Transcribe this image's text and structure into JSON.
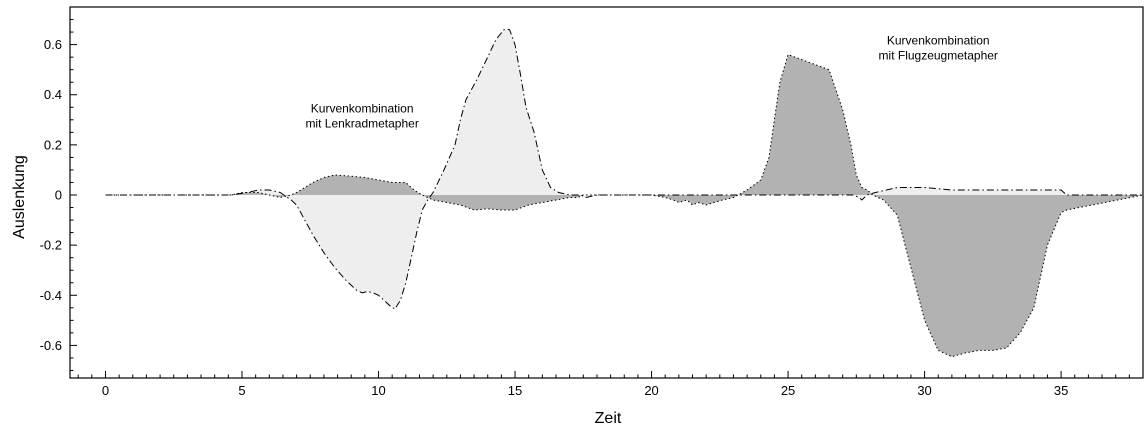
{
  "chart_data": {
    "type": "area",
    "xlabel": "Zeit",
    "ylabel": "Auslenkung",
    "xlim": [
      -1.3,
      38
    ],
    "ylim": [
      -0.73,
      0.75
    ],
    "x_ticks": [
      0,
      5,
      10,
      15,
      20,
      25,
      30,
      35
    ],
    "x_tick_labels": [
      "0",
      "5",
      "10",
      "15",
      "20",
      "25",
      "30",
      "35"
    ],
    "x_minor_step": 0.5,
    "y_ticks": [
      0.6,
      0.4,
      0.2,
      0,
      -0.2,
      -0.4,
      -0.6
    ],
    "y_tick_labels": [
      "0.6",
      "0.4",
      "0.2",
      "0",
      "-0.2",
      "-0.4",
      "-0.6"
    ],
    "y_minor_step": 0.05,
    "grid": false,
    "legend": false,
    "annotations": [
      {
        "lines": [
          "Kurvenkombination",
          "mit Lenkradmetapher"
        ],
        "x": 9.4,
        "y": 0.33
      },
      {
        "lines": [
          "Kurvenkombination",
          "mit Flugzeugmetapher"
        ],
        "x": 30.5,
        "y": 0.6
      }
    ],
    "series": [
      {
        "style": "dash-dot",
        "fill_color": "#eeeeee",
        "x": [
          0,
          4.6,
          5.2,
          5.6,
          6,
          6.4,
          6.8,
          7.0,
          7.3,
          7.6,
          8,
          8.4,
          8.8,
          9.2,
          9.4,
          9.6,
          9.8,
          10,
          10.2,
          10.4,
          10.6,
          10.8,
          11,
          11.2,
          11.4,
          11.6,
          11.8,
          12.0,
          12.4,
          12.8,
          13.0,
          13.2,
          13.6,
          14.0,
          14.3,
          14.6,
          14.8,
          15.0,
          15.2,
          15.4,
          15.7,
          16.0,
          16.3,
          16.6,
          17.0,
          17.4,
          17.6,
          18,
          20,
          23,
          27.4,
          27.6,
          27.7,
          27.9,
          28.2,
          28.6,
          29,
          30,
          31,
          32,
          33,
          34,
          35,
          35.2,
          38
        ],
        "y": [
          0,
          0,
          0.01,
          0.02,
          0.02,
          0.01,
          -0.02,
          -0.04,
          -0.1,
          -0.16,
          -0.23,
          -0.29,
          -0.34,
          -0.38,
          -0.39,
          -0.385,
          -0.39,
          -0.4,
          -0.42,
          -0.44,
          -0.455,
          -0.42,
          -0.35,
          -0.25,
          -0.15,
          -0.06,
          -0.02,
          0.01,
          0.1,
          0.2,
          0.3,
          0.38,
          0.46,
          0.55,
          0.62,
          0.66,
          0.66,
          0.6,
          0.48,
          0.35,
          0.25,
          0.1,
          0.03,
          0.01,
          0.0,
          0.0,
          -0.01,
          0,
          0,
          0,
          0,
          -0.01,
          -0.02,
          0.0,
          0.01,
          0.02,
          0.03,
          0.03,
          0.02,
          0.02,
          0.02,
          0.02,
          0.02,
          0.0,
          0
        ]
      },
      {
        "style": "dotted",
        "fill_color": "#b2b2b2",
        "x": [
          0,
          4.6,
          5.0,
          5.6,
          6,
          6.4,
          6.8,
          7.0,
          7.3,
          7.6,
          8,
          8.4,
          9,
          9.5,
          10,
          10.5,
          11,
          11.3,
          11.6,
          11.8,
          12.0,
          12.5,
          13,
          13.5,
          14,
          14.5,
          15,
          15.5,
          16,
          16.5,
          17,
          17.3,
          17.5,
          17.7,
          18,
          20,
          20.5,
          20.8,
          21,
          21.3,
          21.5,
          21.7,
          22,
          22.3,
          22.6,
          23,
          23.5,
          24,
          24.3,
          24.5,
          24.7,
          25,
          25.5,
          26,
          26.5,
          27,
          27.3,
          27.5,
          27.7,
          27.9,
          28.1,
          28.5,
          29,
          30,
          30.5,
          31,
          31.5,
          32,
          32.5,
          33,
          33.5,
          34,
          34.5,
          35,
          35.2,
          38
        ],
        "y": [
          0,
          0,
          0.01,
          0.01,
          0.0,
          -0.01,
          0.0,
          0.01,
          0.03,
          0.05,
          0.07,
          0.08,
          0.075,
          0.07,
          0.06,
          0.05,
          0.05,
          0.02,
          0.0,
          -0.01,
          -0.02,
          -0.03,
          -0.04,
          -0.06,
          -0.055,
          -0.06,
          -0.06,
          -0.04,
          -0.03,
          -0.02,
          -0.01,
          -0.01,
          0,
          0,
          0,
          0,
          -0.01,
          -0.02,
          -0.03,
          -0.02,
          -0.04,
          -0.03,
          -0.04,
          -0.03,
          -0.02,
          -0.01,
          0.02,
          0.06,
          0.15,
          0.3,
          0.45,
          0.56,
          0.54,
          0.52,
          0.5,
          0.34,
          0.2,
          0.08,
          0.03,
          0.02,
          0.0,
          -0.02,
          -0.08,
          -0.5,
          -0.62,
          -0.645,
          -0.63,
          -0.62,
          -0.62,
          -0.61,
          -0.55,
          -0.45,
          -0.2,
          -0.07,
          -0.06,
          0
        ]
      }
    ]
  }
}
